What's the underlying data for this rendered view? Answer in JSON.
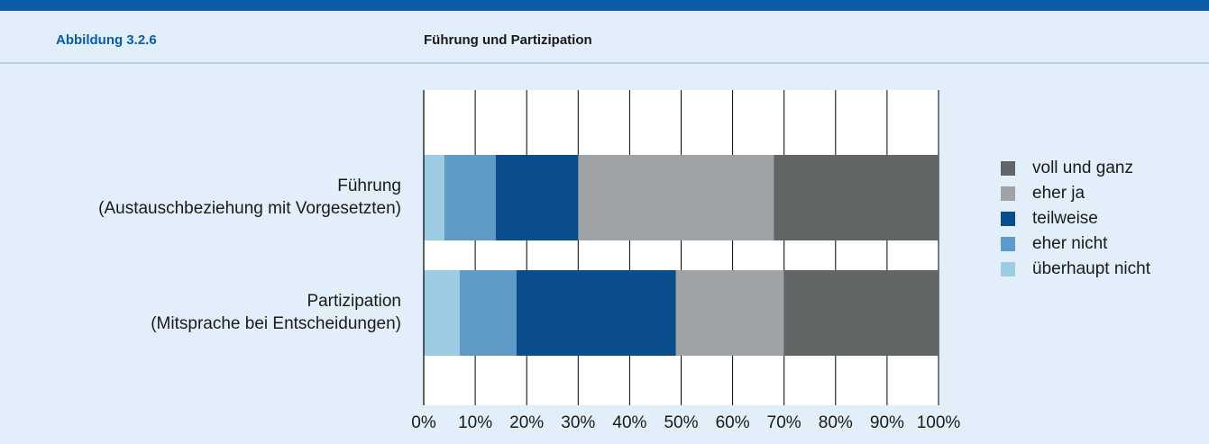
{
  "header": {
    "label": "Abbildung 3.2.6"
  },
  "chart_data": {
    "type": "stacked_barh",
    "title": "Führung und Partizipation",
    "categories": [
      "Führung\n(Austauschbeziehung mit Vorgesetzten)",
      "Partizipation\n(Mitsprache bei Entscheidungen)"
    ],
    "series": [
      {
        "name": "voll und ganz",
        "color": "#616566",
        "values": [
          32,
          30
        ]
      },
      {
        "name": "eher ja",
        "color": "#a0a3a5",
        "values": [
          38,
          21
        ]
      },
      {
        "name": "teilweise",
        "color": "#0a4d8c",
        "values": [
          16,
          31
        ]
      },
      {
        "name": "eher nicht",
        "color": "#5f9bc6",
        "values": [
          10,
          11
        ]
      },
      {
        "name": "überhaupt nicht",
        "color": "#9ccbe3",
        "values": [
          4,
          7
        ]
      }
    ],
    "xlim": [
      0,
      100
    ],
    "xticks": [
      {
        "value": 0,
        "label": "0%"
      },
      {
        "value": 10,
        "label": "10%"
      },
      {
        "value": 20,
        "label": "20%"
      },
      {
        "value": 30,
        "label": "30%"
      },
      {
        "value": 40,
        "label": "40%"
      },
      {
        "value": 50,
        "label": "50%"
      },
      {
        "value": 60,
        "label": "60%"
      },
      {
        "value": 70,
        "label": "70%"
      },
      {
        "value": 80,
        "label": "80%"
      },
      {
        "value": 90,
        "label": "90%"
      },
      {
        "value": 100,
        "label": "100%"
      }
    ],
    "grid": true,
    "legend": "right"
  }
}
